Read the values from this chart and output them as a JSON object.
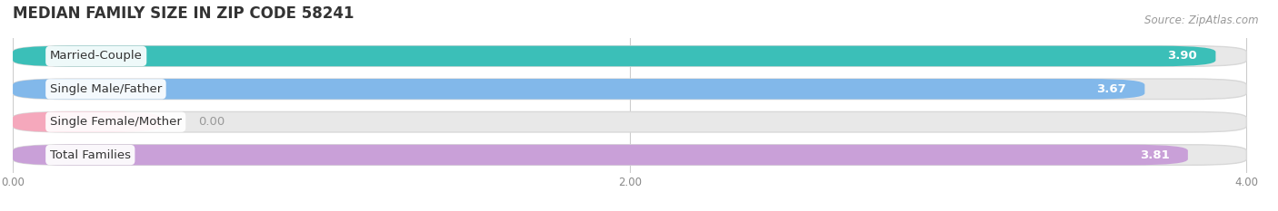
{
  "title": "MEDIAN FAMILY SIZE IN ZIP CODE 58241",
  "source": "Source: ZipAtlas.com",
  "categories": [
    "Married-Couple",
    "Single Male/Father",
    "Single Female/Mother",
    "Total Families"
  ],
  "values": [
    3.9,
    3.67,
    0.0,
    3.81
  ],
  "display_values": [
    "3.90",
    "3.67",
    "0.00",
    "3.81"
  ],
  "bar_colors": [
    "#3bbfb8",
    "#82b8ea",
    "#f5a8bc",
    "#c9a0d8"
  ],
  "bar_height": 0.62,
  "xlim_max": 4.0,
  "xticks": [
    0.0,
    2.0,
    4.0
  ],
  "xtick_labels": [
    "0.00",
    "2.00",
    "4.00"
  ],
  "label_fontsize": 9.5,
  "value_fontsize": 9.5,
  "title_fontsize": 12,
  "source_fontsize": 8.5,
  "background_color": "#ffffff",
  "bar_bg_color": "#e8e8e8",
  "bar_bg_border_color": "#d0d0d0",
  "text_color": "#555555",
  "grid_color": "#cccccc",
  "single_female_bar_width": 0.48
}
